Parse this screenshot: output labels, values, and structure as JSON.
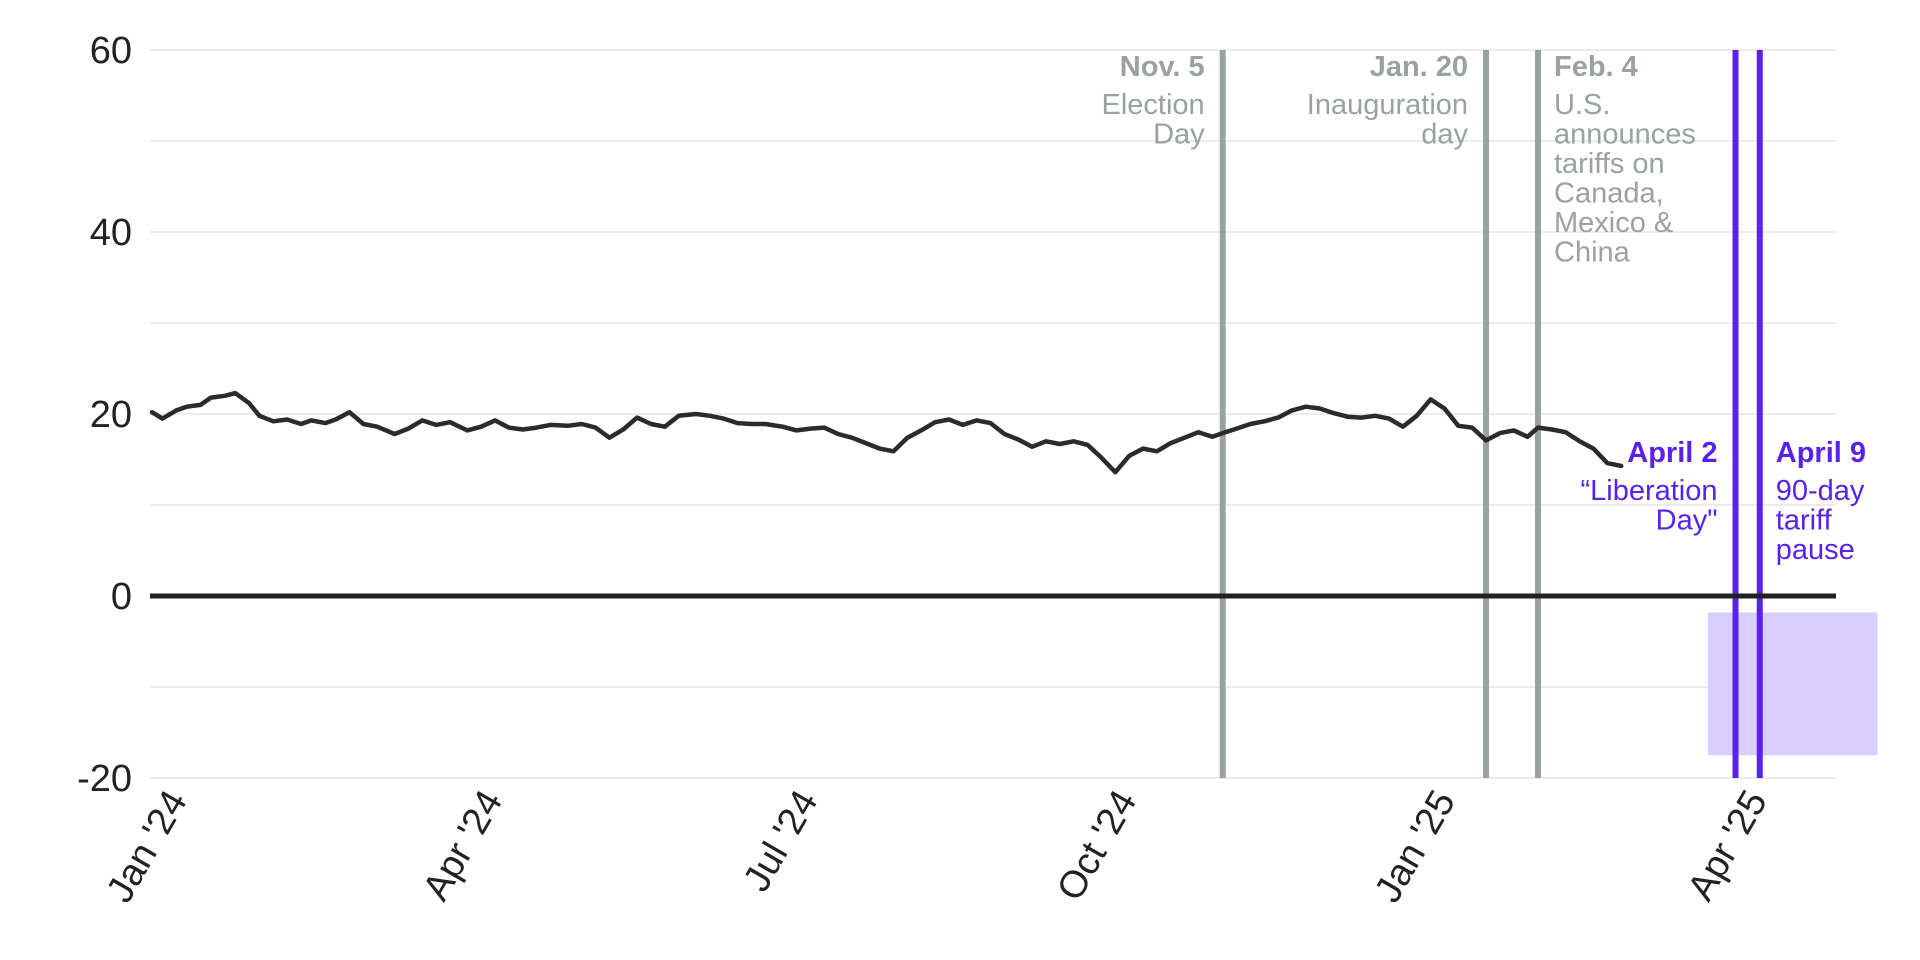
{
  "chart_data": {
    "type": "line",
    "title": "",
    "xlabel": "",
    "ylabel": "",
    "ylim": [
      -20,
      60
    ],
    "xlim": [
      "2024-01-01",
      "2025-05-01"
    ],
    "grid": true,
    "y_ticks": [
      "60",
      "40",
      "20",
      "0",
      "-20"
    ],
    "x_ticks": [
      {
        "label": "Jan '24",
        "date": "2024-01-01"
      },
      {
        "label": "Apr '24",
        "date": "2024-04-01"
      },
      {
        "label": "Jul '24",
        "date": "2024-07-01"
      },
      {
        "label": "Oct '24",
        "date": "2024-10-01"
      },
      {
        "label": "Jan '25",
        "date": "2025-01-01"
      },
      {
        "label": "Apr '25",
        "date": "2025-04-01"
      }
    ],
    "colors": {
      "line": "#2b2b2b",
      "zero_line": "#222222",
      "grid": "#e6e6e6",
      "event_gray": "#9aa29e",
      "event_purple": "#5a20f0",
      "highlight": "#d9ceff"
    },
    "series": [
      {
        "name": "",
        "points": [
          [
            "2024-01-01",
            20.2
          ],
          [
            "2024-01-04",
            19.5
          ],
          [
            "2024-01-08",
            20.4
          ],
          [
            "2024-01-11",
            20.8
          ],
          [
            "2024-01-15",
            21.0
          ],
          [
            "2024-01-18",
            21.8
          ],
          [
            "2024-01-22",
            22.0
          ],
          [
            "2024-01-25",
            22.3
          ],
          [
            "2024-01-29",
            21.2
          ],
          [
            "2024-02-01",
            19.8
          ],
          [
            "2024-02-05",
            19.2
          ],
          [
            "2024-02-09",
            19.4
          ],
          [
            "2024-02-13",
            18.9
          ],
          [
            "2024-02-16",
            19.3
          ],
          [
            "2024-02-20",
            19.0
          ],
          [
            "2024-02-23",
            19.4
          ],
          [
            "2024-02-27",
            20.2
          ],
          [
            "2024-03-02",
            18.9
          ],
          [
            "2024-03-06",
            18.6
          ],
          [
            "2024-03-11",
            17.8
          ],
          [
            "2024-03-15",
            18.4
          ],
          [
            "2024-03-19",
            19.3
          ],
          [
            "2024-03-23",
            18.8
          ],
          [
            "2024-03-27",
            19.1
          ],
          [
            "2024-04-01",
            18.2
          ],
          [
            "2024-04-05",
            18.6
          ],
          [
            "2024-04-09",
            19.3
          ],
          [
            "2024-04-13",
            18.5
          ],
          [
            "2024-04-17",
            18.3
          ],
          [
            "2024-04-21",
            18.5
          ],
          [
            "2024-04-25",
            18.8
          ],
          [
            "2024-04-30",
            18.7
          ],
          [
            "2024-05-04",
            18.9
          ],
          [
            "2024-05-08",
            18.5
          ],
          [
            "2024-05-12",
            17.4
          ],
          [
            "2024-05-16",
            18.3
          ],
          [
            "2024-05-20",
            19.6
          ],
          [
            "2024-05-24",
            18.9
          ],
          [
            "2024-05-28",
            18.6
          ],
          [
            "2024-06-01",
            19.8
          ],
          [
            "2024-06-06",
            20.0
          ],
          [
            "2024-06-10",
            19.8
          ],
          [
            "2024-06-14",
            19.5
          ],
          [
            "2024-06-18",
            19.0
          ],
          [
            "2024-06-22",
            18.9
          ],
          [
            "2024-06-26",
            18.9
          ],
          [
            "2024-07-01",
            18.6
          ],
          [
            "2024-07-05",
            18.2
          ],
          [
            "2024-07-09",
            18.4
          ],
          [
            "2024-07-13",
            18.5
          ],
          [
            "2024-07-17",
            17.8
          ],
          [
            "2024-07-21",
            17.4
          ],
          [
            "2024-07-25",
            16.8
          ],
          [
            "2024-07-29",
            16.2
          ],
          [
            "2024-08-02",
            15.9
          ],
          [
            "2024-08-06",
            17.4
          ],
          [
            "2024-08-10",
            18.2
          ],
          [
            "2024-08-14",
            19.1
          ],
          [
            "2024-08-18",
            19.4
          ],
          [
            "2024-08-22",
            18.8
          ],
          [
            "2024-08-26",
            19.3
          ],
          [
            "2024-08-30",
            19.0
          ],
          [
            "2024-09-03",
            17.8
          ],
          [
            "2024-09-07",
            17.2
          ],
          [
            "2024-09-11",
            16.4
          ],
          [
            "2024-09-15",
            17.0
          ],
          [
            "2024-09-19",
            16.7
          ],
          [
            "2024-09-23",
            17.0
          ],
          [
            "2024-09-27",
            16.6
          ],
          [
            "2024-10-01",
            15.2
          ],
          [
            "2024-10-05",
            13.6
          ],
          [
            "2024-10-09",
            15.4
          ],
          [
            "2024-10-13",
            16.2
          ],
          [
            "2024-10-17",
            15.9
          ],
          [
            "2024-10-21",
            16.8
          ],
          [
            "2024-10-25",
            17.4
          ],
          [
            "2024-10-29",
            18.0
          ],
          [
            "2024-11-02",
            17.5
          ],
          [
            "2024-11-05",
            17.9
          ],
          [
            "2024-11-09",
            18.4
          ],
          [
            "2024-11-13",
            18.9
          ],
          [
            "2024-11-17",
            19.2
          ],
          [
            "2024-11-21",
            19.6
          ],
          [
            "2024-11-25",
            20.4
          ],
          [
            "2024-11-29",
            20.8
          ],
          [
            "2024-12-03",
            20.6
          ],
          [
            "2024-12-07",
            20.1
          ],
          [
            "2024-12-11",
            19.7
          ],
          [
            "2024-12-15",
            19.6
          ],
          [
            "2024-12-19",
            19.8
          ],
          [
            "2024-12-23",
            19.5
          ],
          [
            "2024-12-27",
            18.6
          ],
          [
            "2024-12-31",
            19.8
          ],
          [
            "2025-01-04",
            21.6
          ],
          [
            "2025-01-08",
            20.6
          ],
          [
            "2025-01-12",
            18.7
          ],
          [
            "2025-01-16",
            18.5
          ],
          [
            "2025-01-20",
            17.1
          ],
          [
            "2025-01-24",
            17.9
          ],
          [
            "2025-01-28",
            18.2
          ],
          [
            "2025-02-01",
            17.5
          ],
          [
            "2025-02-04",
            18.5
          ],
          [
            "2025-02-08",
            18.3
          ],
          [
            "2025-02-12",
            18.0
          ],
          [
            "2025-02-16",
            17.0
          ],
          [
            "2025-02-20",
            16.2
          ],
          [
            "2025-02-24",
            14.6
          ],
          [
            "2025-02-28",
            14.3
          ]
        ]
      }
    ],
    "events": [
      {
        "date_label": "Nov. 5",
        "text": [
          "Election",
          "Day"
        ],
        "date": "2024-11-05",
        "color": "gray",
        "align": "right"
      },
      {
        "date_label": "Jan. 20",
        "text": [
          "Inauguration",
          "day"
        ],
        "date": "2025-01-20",
        "color": "gray",
        "align": "right"
      },
      {
        "date_label": "Feb. 4",
        "text": [
          "U.S.",
          "announces",
          "tariffs on",
          "Canada,",
          "Mexico &",
          "China"
        ],
        "date": "2025-02-04",
        "color": "gray",
        "align": "left"
      },
      {
        "date_label": "April 2",
        "text": [
          "“Liberation",
          "Day\""
        ],
        "date": "2025-04-02",
        "color": "purple",
        "align": "right"
      },
      {
        "date_label": "April 9",
        "text": [
          "90-day",
          "tariff",
          "pause"
        ],
        "date": "2025-04-09",
        "color": "purple",
        "align": "left"
      }
    ],
    "highlight_region": {
      "x": [
        "2025-03-25",
        "2025-05-13"
      ],
      "y": [
        -17.5,
        -1.8
      ]
    }
  }
}
